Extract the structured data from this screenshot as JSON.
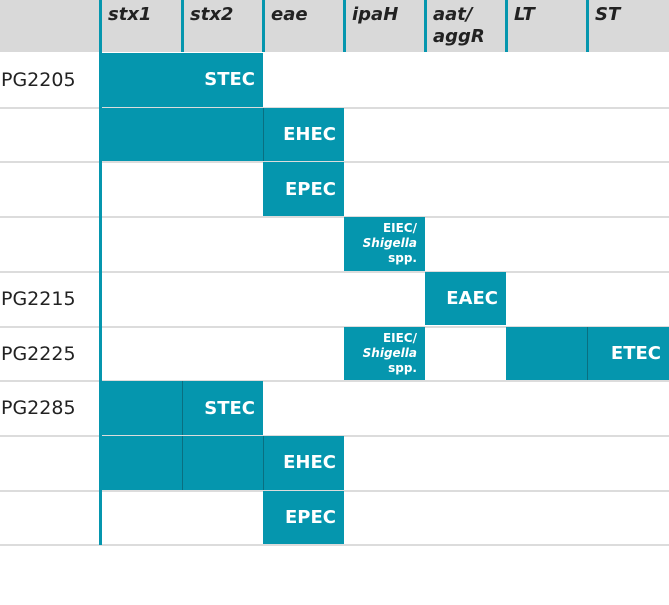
{
  "header": {
    "columns": [
      [
        "stx1"
      ],
      [
        "stx2"
      ],
      [
        "eae"
      ],
      [
        "ipaH"
      ],
      [
        "aat/",
        "aggR"
      ],
      [
        "LT"
      ],
      [
        "ST"
      ]
    ]
  },
  "rows": [
    {
      "label": "PG2205",
      "cells": [
        {
          "text": [
            "STEC"
          ],
          "span": 2
        }
      ]
    },
    {
      "cells": [
        {
          "span": 2
        },
        {
          "text": [
            "EHEC"
          ]
        }
      ]
    },
    {
      "cells": [
        null,
        null,
        {
          "text": [
            "EPEC"
          ]
        }
      ]
    },
    {
      "cells": [
        null,
        null,
        null,
        {
          "text": [
            "EIEC/",
            "Shigella",
            "spp."
          ]
        }
      ]
    },
    {
      "label": "PG2215",
      "cells": [
        null,
        null,
        null,
        null,
        {
          "text": [
            "EAEC"
          ]
        }
      ]
    },
    {
      "label": "PG2225",
      "cells": [
        null,
        null,
        null,
        {
          "text": [
            "EIEC/",
            "Shigella",
            "spp."
          ]
        },
        null,
        {},
        {
          "text": [
            "ETEC"
          ]
        }
      ]
    },
    {
      "label": "PG2285",
      "cells": [
        {},
        {
          "text": [
            "STEC"
          ]
        }
      ]
    },
    {
      "cells": [
        {},
        {},
        {
          "text": [
            "EHEC"
          ]
        }
      ]
    },
    {
      "cells": [
        null,
        null,
        {
          "text": [
            "EPEC"
          ]
        }
      ]
    }
  ]
}
